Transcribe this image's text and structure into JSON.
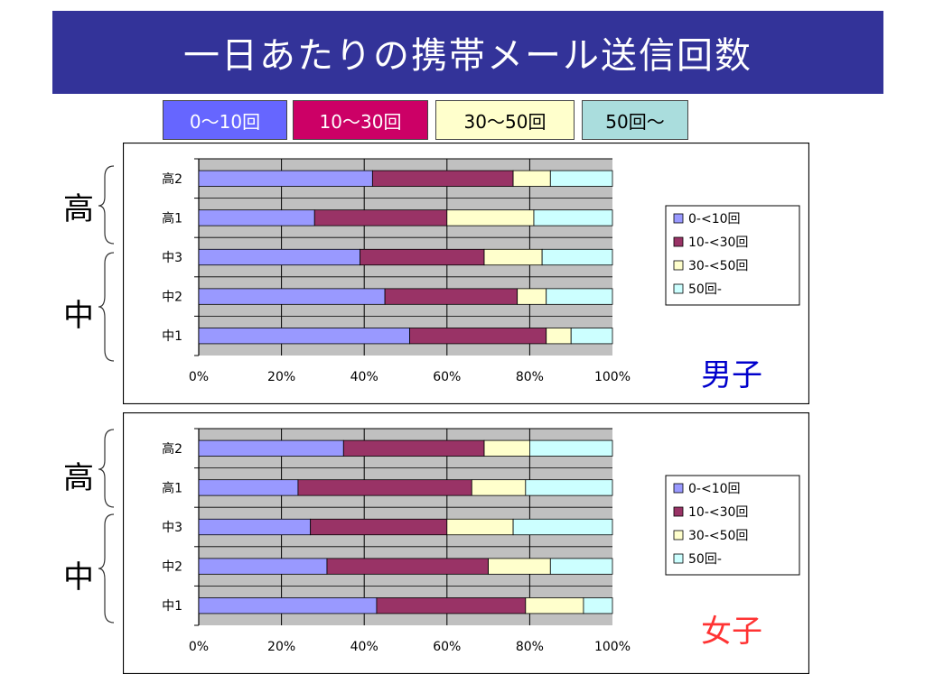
{
  "title": "一日あたりの携帯メール送信回数",
  "top_legend": [
    {
      "label": "0～10回",
      "bg": "#6666ff",
      "fg": "#ffffff"
    },
    {
      "label": "10～30回",
      "bg": "#cc0066",
      "fg": "#ffffff"
    },
    {
      "label": "30～50回",
      "bg": "#ffffcc",
      "fg": "#000000"
    },
    {
      "label": "50回～",
      "bg": "#aadddd",
      "fg": "#000000"
    }
  ],
  "group_labels": {
    "high": "高",
    "middle": "中"
  },
  "colors": {
    "s1": "#9999ff",
    "s2": "#993366",
    "s3": "#ffffcc",
    "s4": "#ccffff",
    "plot_bg": "#c0c0c0",
    "male": "#0000cc",
    "female": "#ff3333"
  },
  "chart_data": [
    {
      "type": "bar",
      "orientation": "horizontal-stacked-100",
      "label": "男子",
      "categories": [
        "高2",
        "高1",
        "中3",
        "中2",
        "中1"
      ],
      "series": [
        {
          "name": "0-<10回",
          "values": [
            42,
            28,
            39,
            45,
            51
          ]
        },
        {
          "name": "10-<30回",
          "values": [
            34,
            32,
            30,
            32,
            33
          ]
        },
        {
          "name": "30-<50回",
          "values": [
            9,
            21,
            14,
            7,
            6
          ]
        },
        {
          "name": "50回-",
          "values": [
            15,
            19,
            17,
            16,
            10
          ]
        }
      ],
      "xticks": [
        "0%",
        "20%",
        "40%",
        "60%",
        "80%",
        "100%"
      ],
      "xlim": [
        0,
        100
      ],
      "legend": "right"
    },
    {
      "type": "bar",
      "orientation": "horizontal-stacked-100",
      "label": "女子",
      "categories": [
        "高2",
        "高1",
        "中3",
        "中2",
        "中1"
      ],
      "series": [
        {
          "name": "0-<10回",
          "values": [
            35,
            24,
            27,
            31,
            43
          ]
        },
        {
          "name": "10-<30回",
          "values": [
            34,
            42,
            33,
            39,
            36
          ]
        },
        {
          "name": "30-<50回",
          "values": [
            11,
            13,
            16,
            15,
            14
          ]
        },
        {
          "name": "50回-",
          "values": [
            20,
            21,
            24,
            15,
            7
          ]
        }
      ],
      "xticks": [
        "0%",
        "20%",
        "40%",
        "60%",
        "80%",
        "100%"
      ],
      "xlim": [
        0,
        100
      ],
      "legend": "right"
    }
  ]
}
